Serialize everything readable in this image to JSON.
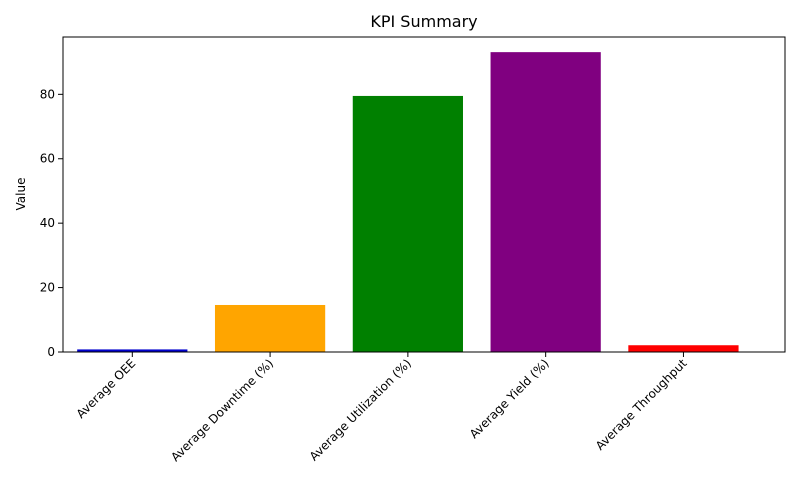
{
  "chart_data": {
    "type": "bar",
    "title": "KPI Summary",
    "xlabel": "",
    "ylabel": "Value",
    "categories": [
      "Average OEE",
      "Average Downtime (%)",
      "Average Utilization (%)",
      "Average Yield (%)",
      "Average Throughput"
    ],
    "values": [
      0.8,
      14.6,
      79.5,
      93.1,
      2.1
    ],
    "colors": [
      "#0000cd",
      "#ffa500",
      "#008000",
      "#800080",
      "#ff0000"
    ],
    "ylim": [
      0,
      97.8
    ],
    "yticks": [
      0,
      20,
      40,
      60,
      80
    ],
    "grid": false,
    "legend": "none"
  }
}
